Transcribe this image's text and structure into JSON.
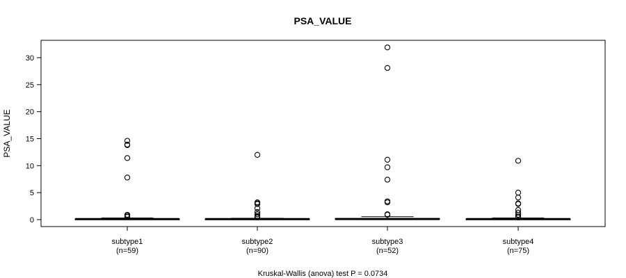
{
  "chart_data": {
    "type": "boxplot",
    "title": "PSA_VALUE",
    "ylabel": "PSA_VALUE",
    "ylim": [
      -1.2,
      33
    ],
    "yticks": [
      0,
      5,
      10,
      15,
      20,
      25,
      30
    ],
    "groups": [
      {
        "label": "subtype1",
        "n_label": "(n=59)",
        "box": {
          "min": 0.0,
          "q1": 0.05,
          "median": 0.1,
          "q3": 0.12,
          "max": 0.3
        },
        "outliers": [
          14.6,
          13.9,
          13.8,
          11.4,
          7.8,
          0.9,
          0.7,
          0.5
        ]
      },
      {
        "label": "subtype2",
        "n_label": "(n=90)",
        "box": {
          "min": 0.0,
          "q1": 0.05,
          "median": 0.1,
          "q3": 0.12,
          "max": 0.25
        },
        "outliers": [
          12.0,
          3.2,
          3.0,
          2.9,
          2.1,
          1.4,
          1.0,
          0.7,
          0.5,
          0.4
        ]
      },
      {
        "label": "subtype3",
        "n_label": "(n=52)",
        "box": {
          "min": 0.0,
          "q1": 0.05,
          "median": 0.12,
          "q3": 0.2,
          "max": 0.55
        },
        "outliers": [
          31.9,
          28.1,
          11.1,
          9.7,
          7.4,
          3.4,
          3.2,
          1.0,
          0.9
        ]
      },
      {
        "label": "subtype4",
        "n_label": "(n=75)",
        "box": {
          "min": 0.0,
          "q1": 0.05,
          "median": 0.1,
          "q3": 0.12,
          "max": 0.3
        },
        "outliers": [
          10.9,
          5.0,
          4.1,
          3.0,
          2.9,
          1.8,
          1.3,
          0.9,
          0.6,
          0.4
        ]
      }
    ],
    "footer": "Kruskal-Wallis (anova) test P = 0.0734"
  }
}
